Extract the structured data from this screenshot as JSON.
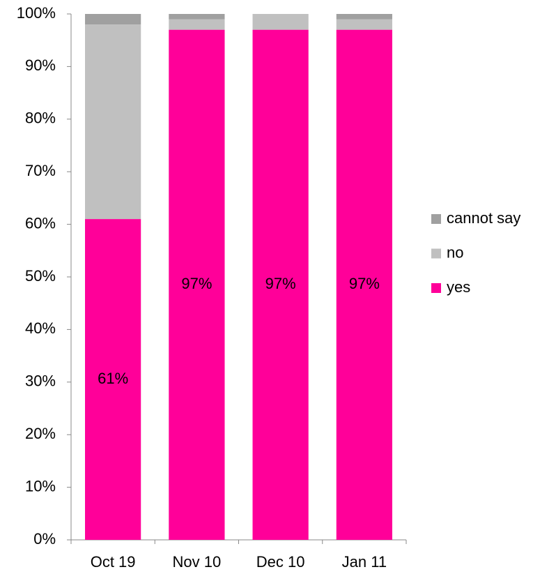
{
  "chart_data": {
    "type": "stacked_bar",
    "categories": [
      "Oct 19",
      "Nov 10",
      "Dec 10",
      "Jan 11"
    ],
    "series": [
      {
        "name": "yes",
        "color": "#ff0099",
        "values": [
          61,
          97,
          97,
          97
        ],
        "value_labels": [
          "61%",
          "97%",
          "97%",
          "97%"
        ]
      },
      {
        "name": "no",
        "color": "#c0c0c0",
        "values": [
          37,
          2,
          3,
          2
        ]
      },
      {
        "name": "cannot say",
        "color": "#a0a0a0",
        "values": [
          2,
          1,
          0,
          1
        ]
      }
    ],
    "ylim": [
      0,
      100
    ],
    "yticks": [
      {
        "value": 0,
        "label": "0%"
      },
      {
        "value": 10,
        "label": "10%"
      },
      {
        "value": 20,
        "label": "20%"
      },
      {
        "value": 30,
        "label": "30%"
      },
      {
        "value": 40,
        "label": "40%"
      },
      {
        "value": 50,
        "label": "50%"
      },
      {
        "value": 60,
        "label": "60%"
      },
      {
        "value": 70,
        "label": "70%"
      },
      {
        "value": 80,
        "label": "80%"
      },
      {
        "value": 90,
        "label": "90%"
      },
      {
        "value": 100,
        "label": "100%"
      }
    ],
    "legend": "right"
  }
}
